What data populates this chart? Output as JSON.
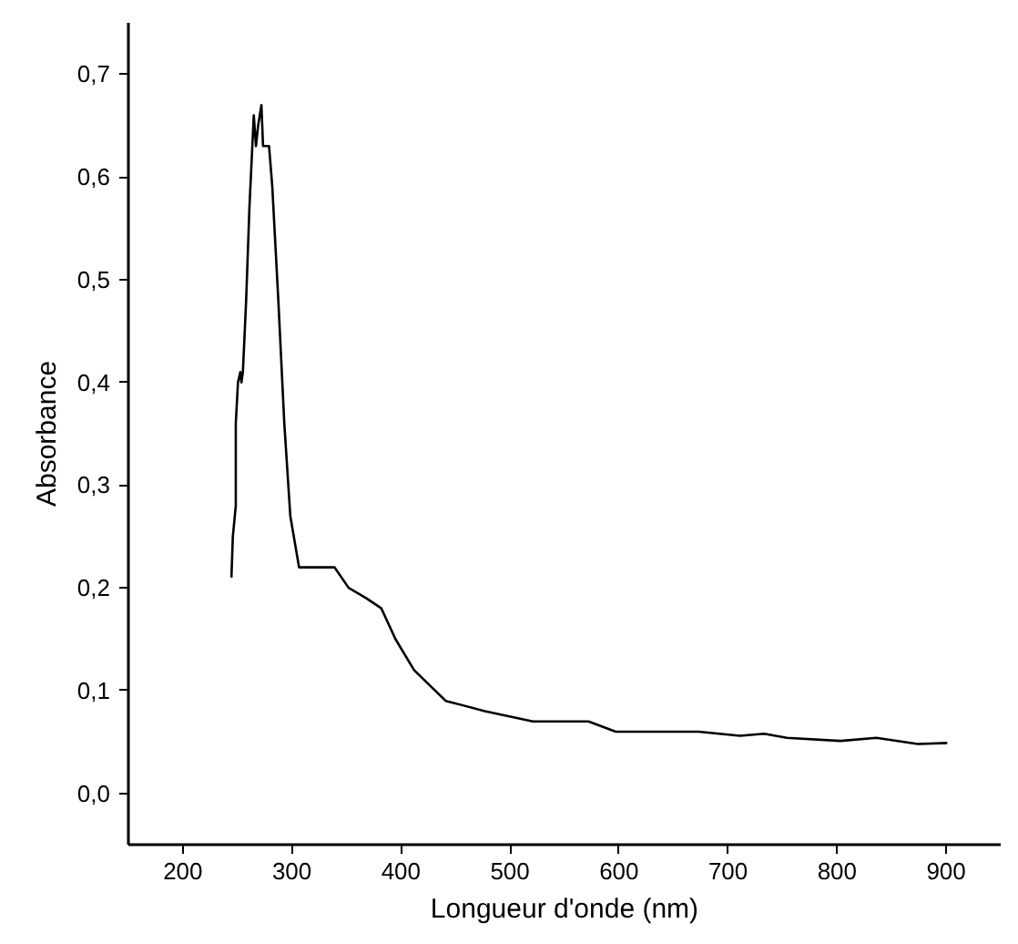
{
  "chart_data": {
    "type": "line",
    "xlabel": "Longueur d'onde (nm)",
    "ylabel": "Absorbance",
    "x": [
      244.5,
      245.8,
      248.5,
      248.5,
      250.5,
      252.7,
      253.7,
      255,
      258,
      261,
      265,
      267,
      269,
      272,
      273.5,
      276,
      279,
      282,
      287.5,
      293,
      298.5,
      306.5,
      314.7,
      331,
      339,
      352,
      368,
      382,
      395,
      412,
      441,
      477,
      521,
      550,
      572,
      597,
      646,
      673,
      711,
      733,
      754,
      803,
      836,
      874,
      901
    ],
    "series": [
      {
        "color": "#000000",
        "values": [
          0.21,
          0.25,
          0.28,
          0.36,
          0.4,
          0.41,
          0.4,
          0.41,
          0.48,
          0.57,
          0.66,
          0.63,
          0.65,
          0.67,
          0.63,
          0.63,
          0.63,
          0.59,
          0.48,
          0.36,
          0.27,
          0.22,
          0.22,
          0.22,
          0.22,
          0.2,
          0.19,
          0.18,
          0.15,
          0.12,
          0.09,
          0.08,
          0.07,
          0.07,
          0.07,
          0.06,
          0.06,
          0.06,
          0.056,
          0.058,
          0.054,
          0.051,
          0.054,
          0.048,
          0.049
        ]
      }
    ],
    "xlim": [
      150,
      950
    ],
    "ylim": [
      -0.05,
      0.75
    ],
    "xticks": [
      200,
      300,
      400,
      500,
      600,
      700,
      800,
      900
    ],
    "yticks": [
      {
        "value": 0,
        "label": "0,0"
      },
      {
        "value": 0.1,
        "label": "0,1"
      },
      {
        "value": 0.2,
        "label": "0,2"
      },
      {
        "value": 0.3,
        "label": "0,3"
      },
      {
        "value": 0.4,
        "label": "0,4"
      },
      {
        "value": 0.5,
        "label": "0,5"
      },
      {
        "value": 0.6,
        "label": "0,6"
      },
      {
        "value": 0.7,
        "label": "0,7"
      }
    ],
    "grid": false,
    "marker": "none",
    "line_style": "solid"
  }
}
